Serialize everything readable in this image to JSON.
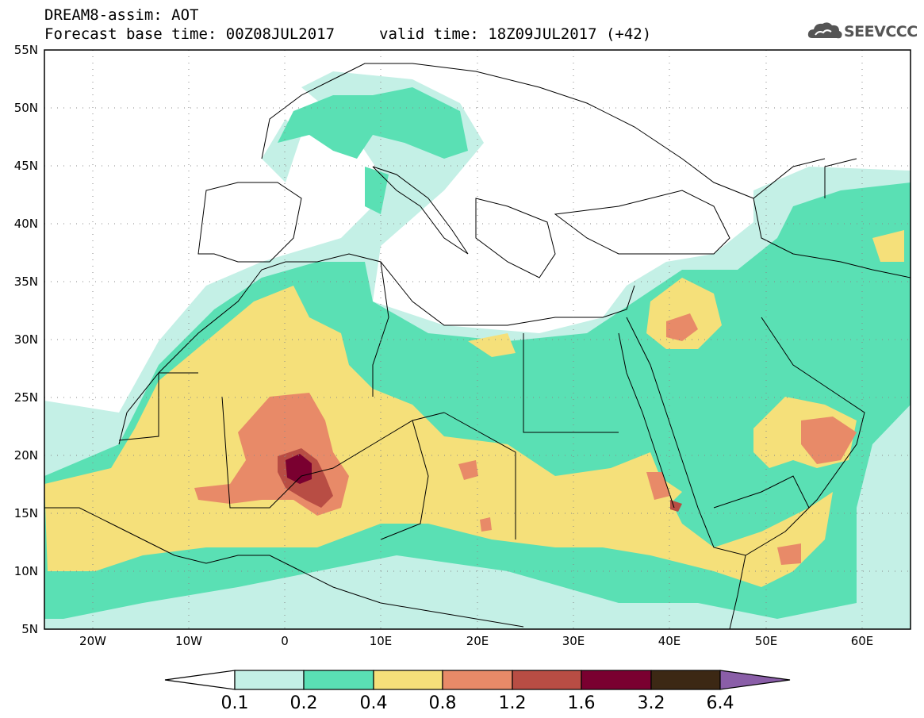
{
  "header": {
    "title": "DREAM8-assim: AOT",
    "base_time": "Forecast base time: 00Z08JUL2017",
    "valid_time": "valid time: 18Z09JUL2017 (+42)"
  },
  "logo": {
    "text": "SEEVCCC",
    "icon": "cloud-icon"
  },
  "map": {
    "lat_labels": [
      "55N",
      "50N",
      "45N",
      "40N",
      "35N",
      "30N",
      "25N",
      "20N",
      "15N",
      "10N",
      "5N"
    ],
    "lon_labels": [
      "20W",
      "10W",
      "0",
      "10E",
      "20E",
      "30E",
      "40E",
      "50E",
      "60E"
    ],
    "lat_range": [
      5,
      55
    ],
    "lon_range": [
      -25,
      65
    ],
    "grid": "dotted"
  },
  "colorbar": {
    "labels": [
      "0.1",
      "0.2",
      "0.4",
      "0.8",
      "1.2",
      "1.6",
      "3.2",
      "6.4"
    ],
    "colors": [
      "#ffffff",
      "#c4f0e6",
      "#5ae0b4",
      "#f5e07a",
      "#e88a68",
      "#b84d44",
      "#7a0030",
      "#3c2814",
      "#8a5ea8"
    ]
  }
}
